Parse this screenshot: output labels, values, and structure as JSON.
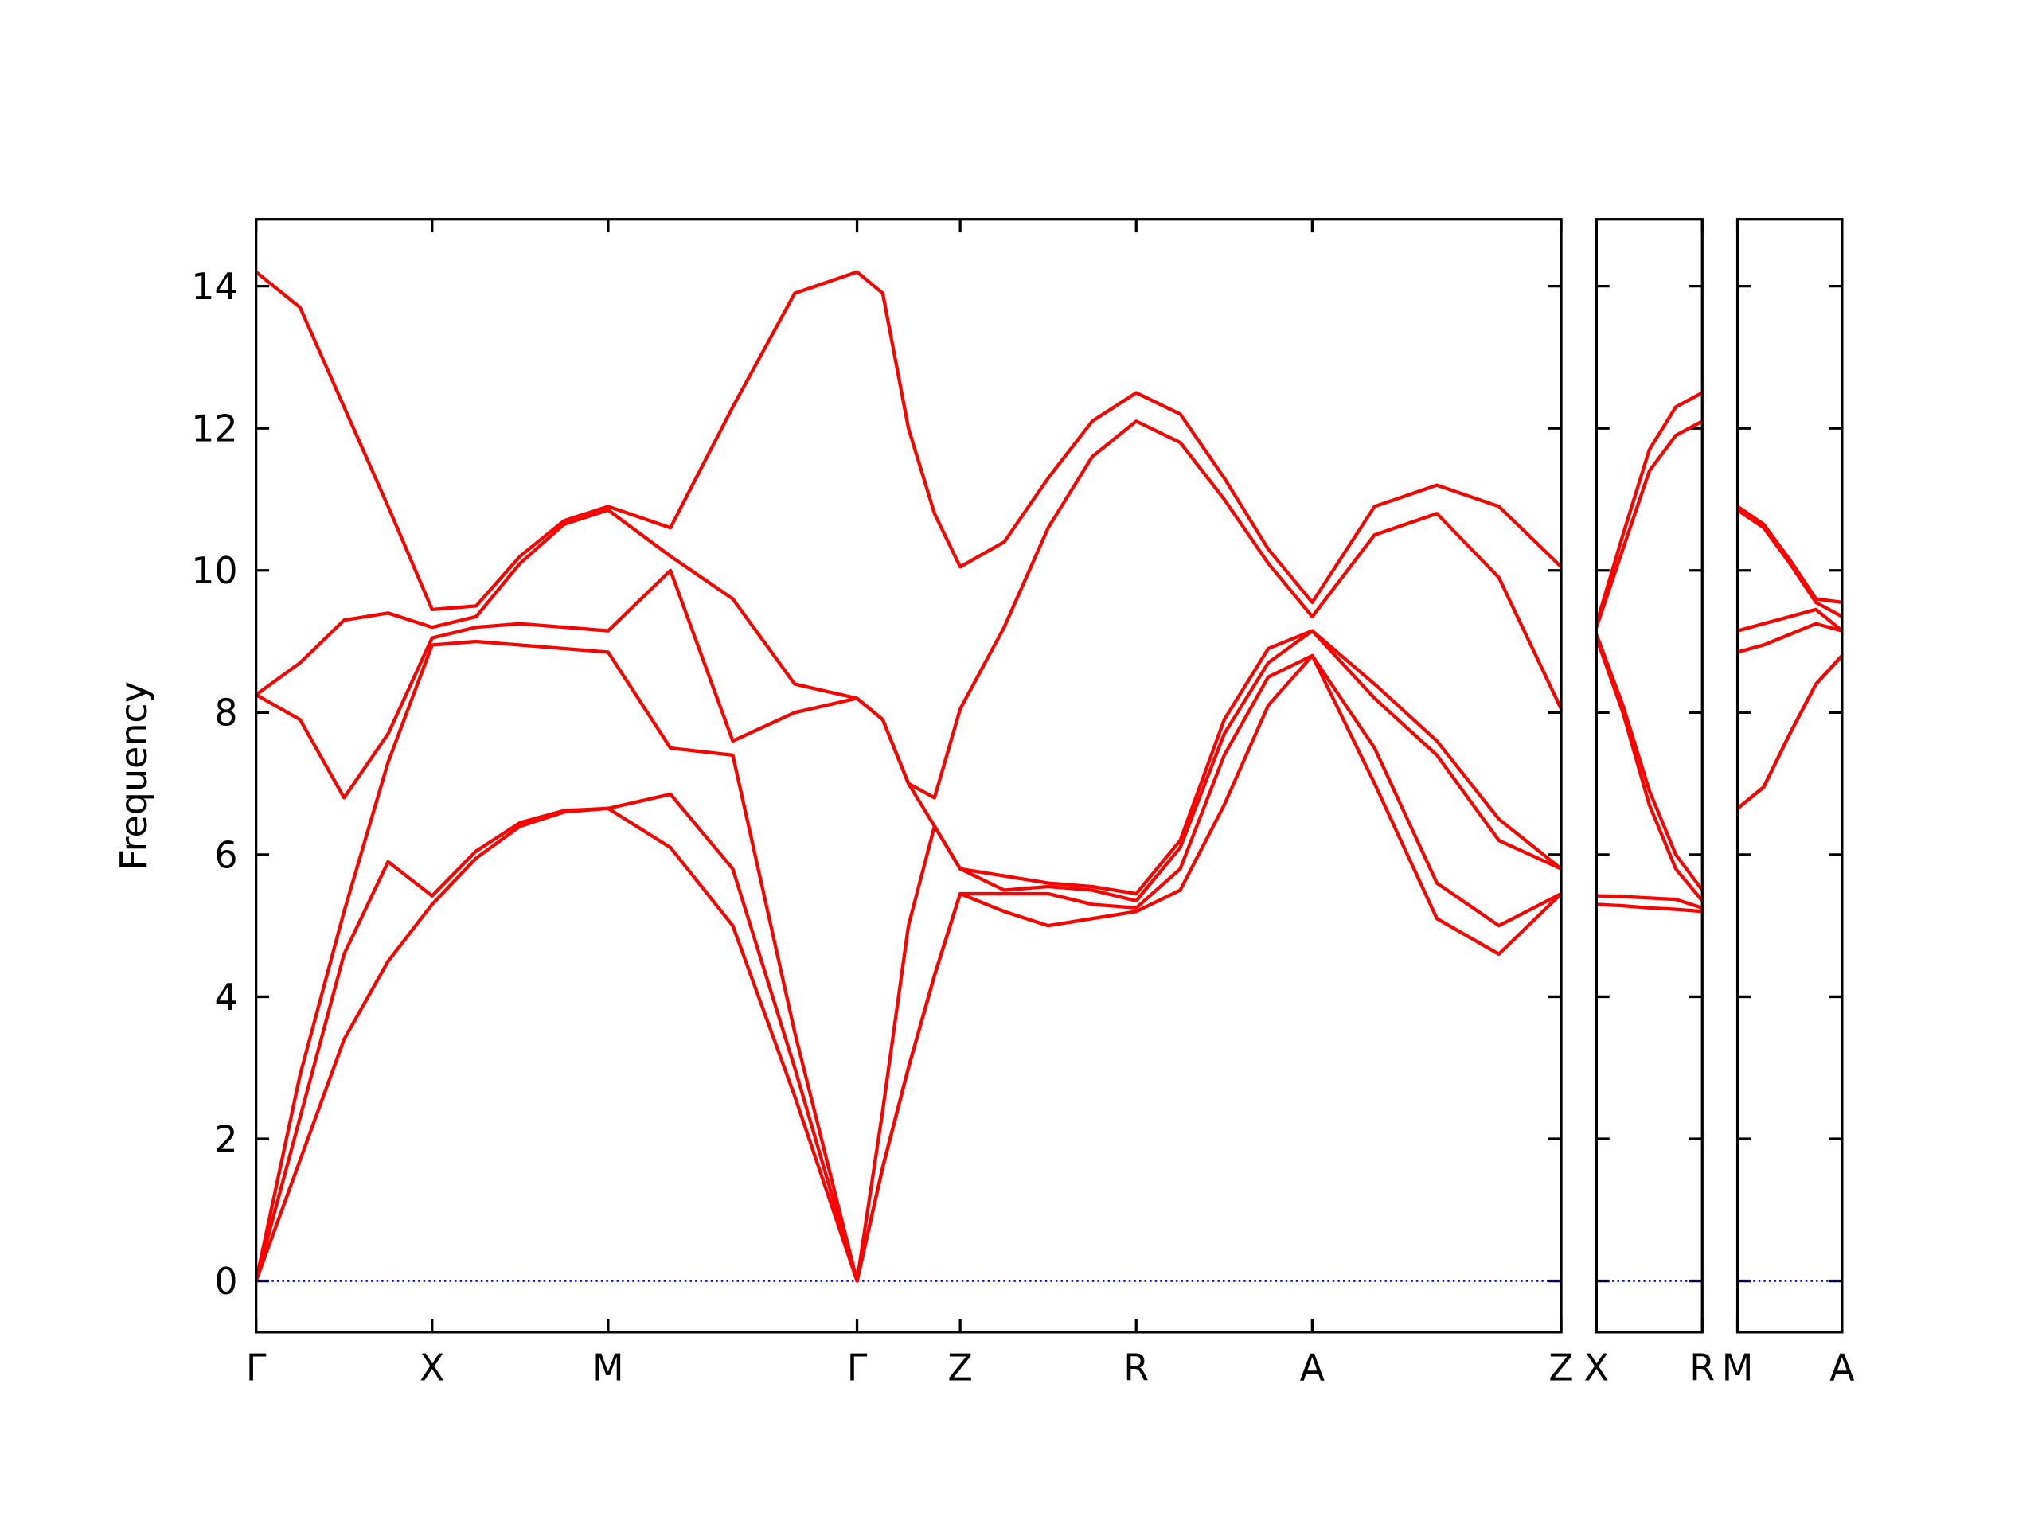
{
  "chart_data": [
    {
      "type": "line",
      "ylabel": "Frequency",
      "xlim": [
        0,
        3.707
      ],
      "ylim": [
        -0.72,
        14.94
      ],
      "yticks": [
        0,
        2,
        4,
        6,
        8,
        10,
        12,
        14
      ],
      "xticks": [
        {
          "value": 0,
          "label": "Γ"
        },
        {
          "value": 0.5,
          "label": "X"
        },
        {
          "value": 1.0,
          "label": "M"
        },
        {
          "value": 1.707,
          "label": "Γ"
        },
        {
          "value": 2.0,
          "label": "Z"
        },
        {
          "value": 2.5,
          "label": "R"
        },
        {
          "value": 3.0,
          "label": "A"
        },
        {
          "value": 3.707,
          "label": "Z"
        }
      ],
      "hline": {
        "y": 0,
        "color": "#0000cc"
      },
      "x": [
        0,
        0.125,
        0.25,
        0.375,
        0.5,
        0.625,
        0.75,
        0.875,
        1.0,
        1.177,
        1.354,
        1.53,
        1.707,
        1.78,
        1.853,
        1.927,
        2.0,
        2.125,
        2.25,
        2.375,
        2.5,
        2.625,
        2.75,
        2.875,
        3.0,
        3.177,
        3.354,
        3.53,
        3.707
      ],
      "series": [
        {
          "color": "#ff0000",
          "values": [
            0,
            1.7,
            3.4,
            4.5,
            5.3,
            5.95,
            6.4,
            6.6,
            6.65,
            6.1,
            5.0,
            2.6,
            0,
            1.6,
            3.0,
            4.3,
            5.45,
            5.2,
            5.0,
            5.1,
            5.2,
            5.5,
            6.7,
            8.1,
            8.8,
            7.0,
            5.1,
            4.6,
            5.45
          ]
        },
        {
          "color": "#ff0000",
          "values": [
            0,
            2.3,
            4.6,
            5.9,
            5.42,
            6.05,
            6.45,
            6.62,
            6.65,
            6.85,
            5.8,
            3.0,
            0,
            1.6,
            3.0,
            4.3,
            5.45,
            5.45,
            5.45,
            5.3,
            5.25,
            5.8,
            7.4,
            8.5,
            8.8,
            7.5,
            5.6,
            5.0,
            5.45
          ]
        },
        {
          "color": "#ff0000",
          "values": [
            0,
            2.9,
            5.2,
            7.3,
            8.95,
            9.0,
            8.95,
            8.9,
            8.85,
            7.5,
            7.4,
            3.5,
            0,
            2.4,
            5.0,
            6.4,
            5.8,
            5.5,
            5.55,
            5.5,
            5.35,
            6.1,
            7.7,
            8.7,
            9.15,
            8.2,
            7.4,
            6.2,
            5.8
          ]
        },
        {
          "color": "#ff0000",
          "values": [
            8.25,
            7.9,
            6.8,
            7.7,
            9.05,
            9.2,
            9.25,
            9.2,
            9.15,
            10.0,
            7.6,
            8.0,
            8.2,
            7.9,
            7.0,
            6.4,
            5.8,
            5.7,
            5.6,
            5.55,
            5.45,
            6.2,
            7.9,
            8.9,
            9.15,
            8.4,
            7.6,
            6.5,
            5.8
          ]
        },
        {
          "color": "#ff0000",
          "values": [
            8.25,
            8.7,
            9.3,
            9.4,
            9.2,
            9.35,
            10.1,
            10.65,
            10.85,
            10.2,
            9.6,
            8.4,
            8.2,
            7.9,
            7.0,
            6.8,
            8.05,
            9.2,
            10.6,
            11.6,
            12.1,
            11.8,
            11.0,
            10.1,
            9.35,
            10.5,
            10.8,
            9.9,
            8.05
          ]
        },
        {
          "color": "#ff0000",
          "values": [
            14.2,
            13.7,
            12.3,
            10.9,
            9.45,
            9.5,
            10.2,
            10.7,
            10.9,
            10.6,
            12.3,
            13.9,
            14.2,
            13.9,
            12.0,
            10.8,
            10.05,
            10.4,
            11.3,
            12.1,
            12.5,
            12.2,
            11.3,
            10.3,
            9.55,
            10.9,
            11.2,
            10.9,
            10.05
          ]
        }
      ]
    },
    {
      "type": "line",
      "xlim": [
        0,
        0.3
      ],
      "ylim": [
        -0.72,
        14.94
      ],
      "xticks": [
        {
          "value": 0,
          "label": "X"
        },
        {
          "value": 0.3,
          "label": "R"
        }
      ],
      "hline": {
        "y": 0,
        "color": "#0000cc"
      },
      "x": [
        0,
        0.075,
        0.15,
        0.225,
        0.3
      ],
      "series": [
        {
          "color": "#ff0000",
          "values": [
            5.3,
            5.28,
            5.25,
            5.23,
            5.2
          ]
        },
        {
          "color": "#ff0000",
          "values": [
            5.42,
            5.41,
            5.39,
            5.37,
            5.25
          ]
        },
        {
          "color": "#ff0000",
          "values": [
            9.05,
            8.0,
            6.7,
            5.8,
            5.35
          ]
        },
        {
          "color": "#ff0000",
          "values": [
            9.1,
            8.1,
            6.9,
            6.0,
            5.5
          ]
        },
        {
          "color": "#ff0000",
          "values": [
            9.2,
            10.3,
            11.4,
            11.9,
            12.1
          ]
        },
        {
          "color": "#ff0000",
          "values": [
            9.25,
            10.5,
            11.7,
            12.3,
            12.5
          ]
        }
      ]
    },
    {
      "type": "line",
      "xlim": [
        0,
        0.3
      ],
      "ylim": [
        -0.72,
        14.94
      ],
      "xticks": [
        {
          "value": 0,
          "label": "M"
        },
        {
          "value": 0.3,
          "label": "A"
        }
      ],
      "hline": {
        "y": 0,
        "color": "#0000cc"
      },
      "x": [
        0,
        0.075,
        0.15,
        0.225,
        0.3
      ],
      "series": [
        {
          "color": "#ff0000",
          "values": [
            6.65,
            6.95,
            7.7,
            8.4,
            8.8
          ]
        },
        {
          "color": "#ff0000",
          "values": [
            6.65,
            6.95,
            7.7,
            8.4,
            8.8
          ]
        },
        {
          "color": "#ff0000",
          "values": [
            8.85,
            8.95,
            9.1,
            9.25,
            9.15
          ]
        },
        {
          "color": "#ff0000",
          "values": [
            9.15,
            9.25,
            9.35,
            9.45,
            9.15
          ]
        },
        {
          "color": "#ff0000",
          "values": [
            10.85,
            10.6,
            10.1,
            9.55,
            9.35
          ]
        },
        {
          "color": "#ff0000",
          "values": [
            10.9,
            10.65,
            10.15,
            9.6,
            9.55
          ]
        }
      ]
    }
  ]
}
